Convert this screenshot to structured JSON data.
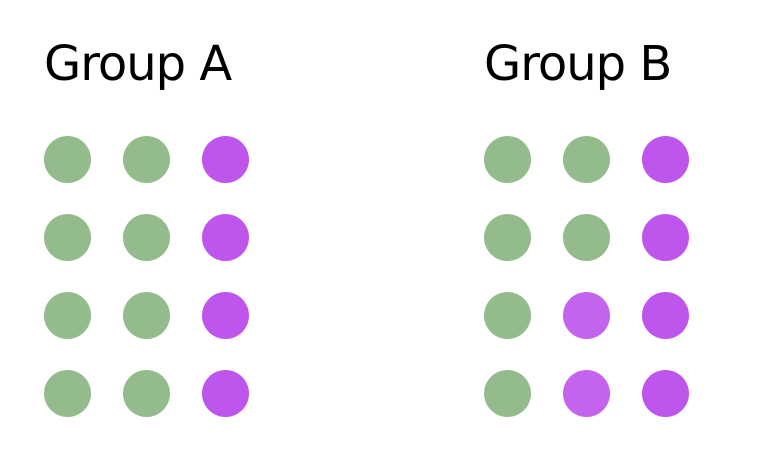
{
  "colors": {
    "green": "#93bb8c",
    "purple": "#be55ec",
    "light_purple": "#c464ee"
  },
  "groups": [
    {
      "id": "a",
      "title": "Group A",
      "rows": [
        [
          "green",
          "green",
          "purple"
        ],
        [
          "green",
          "green",
          "purple"
        ],
        [
          "green",
          "green",
          "purple"
        ],
        [
          "green",
          "green",
          "purple"
        ]
      ]
    },
    {
      "id": "b",
      "title": "Group B",
      "rows": [
        [
          "green",
          "green",
          "purple"
        ],
        [
          "green",
          "green",
          "purple"
        ],
        [
          "green",
          "light_purple",
          "purple"
        ],
        [
          "green",
          "light_purple",
          "purple"
        ]
      ]
    }
  ]
}
